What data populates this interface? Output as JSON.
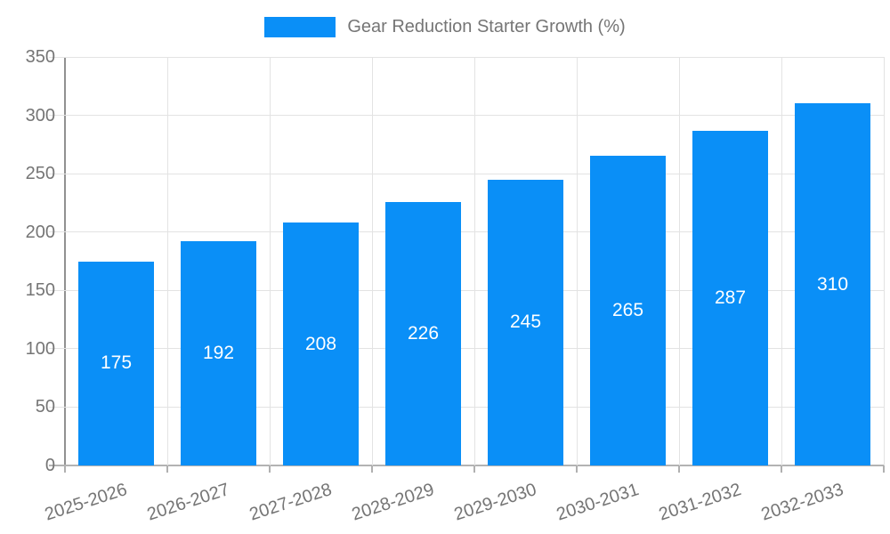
{
  "legend": {
    "label": "Gear Reduction Starter Growth (%)"
  },
  "chart_data": {
    "type": "bar",
    "title": "",
    "categories": [
      "2025-2026",
      "2026-2027",
      "2027-2028",
      "2028-2029",
      "2029-2030",
      "2030-2031",
      "2031-2032",
      "2032-2033"
    ],
    "values": [
      175,
      192,
      208,
      226,
      245,
      265,
      287,
      310
    ],
    "series_name": "Gear Reduction Starter Growth (%)",
    "xlabel": "",
    "ylabel": "",
    "ylim": [
      0,
      350
    ],
    "ytick_step": 50,
    "ytick_labels": [
      "0",
      "50",
      "100",
      "150",
      "200",
      "250",
      "300",
      "350"
    ],
    "grid": true,
    "legend_position": "top",
    "bar_color": "#0a8ff7",
    "value_label_color": "#ffffff",
    "axis_text_color": "#757575",
    "gridline_color": "#e3e3e3"
  }
}
